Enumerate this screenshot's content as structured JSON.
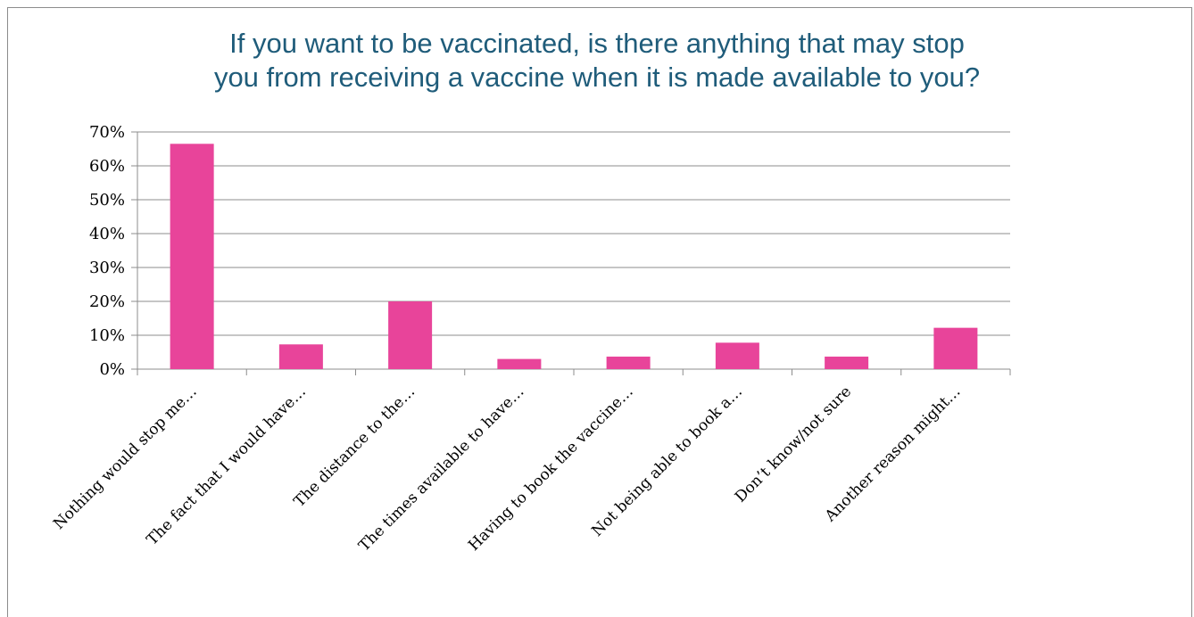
{
  "chart_data": {
    "type": "bar",
    "title_lines": [
      "If you want to be vaccinated, is there anything that may stop",
      "you from receiving a vaccine when it is made available to you?"
    ],
    "categories": [
      "Nothing would stop me…",
      "The fact that I would have…",
      "The distance to the…",
      "The times available to have…",
      "Having to book the vaccine…",
      "Not being able to book a…",
      "Don’t know/not sure",
      "Another reason might…"
    ],
    "values": [
      0.665,
      0.073,
      0.2,
      0.03,
      0.037,
      0.078,
      0.037,
      0.122
    ],
    "ylim": [
      0,
      0.7
    ],
    "yticks": [
      0,
      0.1,
      0.2,
      0.3,
      0.4,
      0.5,
      0.6,
      0.7
    ],
    "ytick_labels": [
      "0%",
      "10%",
      "20%",
      "30%",
      "40%",
      "50%",
      "60%",
      "70%"
    ],
    "grid": true,
    "bar_color": "#e8449a"
  }
}
